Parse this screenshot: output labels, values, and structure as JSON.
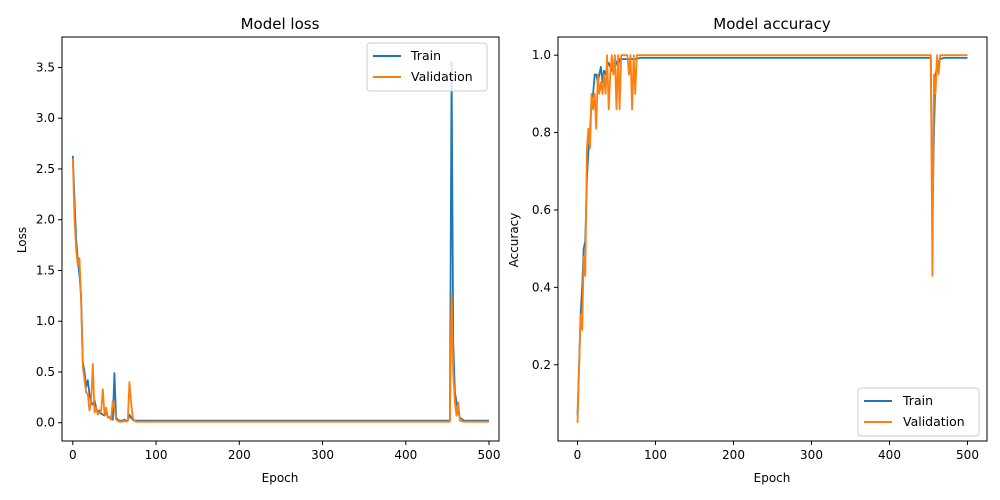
{
  "colors": {
    "train": "#1f77b4",
    "validation": "#ff7f0e"
  },
  "chart_data": [
    {
      "type": "line",
      "title": "Model loss",
      "xlabel": "Epoch",
      "ylabel": "Loss",
      "xlim": [
        -13,
        512
      ],
      "ylim": [
        -0.18,
        3.8
      ],
      "xticks": [
        0,
        100,
        200,
        300,
        400,
        500
      ],
      "yticks": [
        0.0,
        0.5,
        1.0,
        1.5,
        2.0,
        2.5,
        3.0,
        3.5
      ],
      "ytick_labels": [
        "0.0",
        "0.5",
        "1.0",
        "1.5",
        "2.0",
        "2.5",
        "3.0",
        "3.5"
      ],
      "legend_position": "top-right",
      "legend": [
        "Train",
        "Validation"
      ],
      "series": [
        {
          "name": "Train",
          "x": [
            0,
            2,
            4,
            6,
            8,
            10,
            12,
            14,
            16,
            18,
            20,
            22,
            24,
            26,
            28,
            30,
            32,
            34,
            36,
            38,
            40,
            42,
            44,
            46,
            48,
            50,
            52,
            54,
            56,
            58,
            60,
            62,
            64,
            66,
            68,
            70,
            72,
            74,
            76,
            80,
            90,
            100,
            150,
            200,
            250,
            300,
            350,
            400,
            450,
            453,
            455,
            457,
            459,
            461,
            463,
            465,
            470,
            480,
            500
          ],
          "y": [
            2.63,
            2.2,
            1.8,
            1.6,
            1.45,
            1.25,
            0.6,
            0.5,
            0.35,
            0.42,
            0.28,
            0.2,
            0.18,
            0.22,
            0.15,
            0.1,
            0.12,
            0.09,
            0.08,
            0.07,
            0.1,
            0.06,
            0.05,
            0.04,
            0.03,
            0.49,
            0.05,
            0.03,
            0.02,
            0.02,
            0.02,
            0.03,
            0.02,
            0.02,
            0.08,
            0.05,
            0.03,
            0.02,
            0.02,
            0.02,
            0.02,
            0.02,
            0.02,
            0.02,
            0.02,
            0.02,
            0.02,
            0.02,
            0.02,
            0.02,
            3.55,
            0.8,
            0.3,
            0.2,
            0.1,
            0.05,
            0.02,
            0.02,
            0.02
          ]
        },
        {
          "name": "Validation",
          "x": [
            0,
            2,
            4,
            6,
            8,
            10,
            12,
            14,
            16,
            18,
            20,
            22,
            24,
            26,
            28,
            30,
            32,
            34,
            36,
            38,
            40,
            42,
            44,
            46,
            48,
            50,
            52,
            54,
            56,
            58,
            60,
            62,
            64,
            66,
            68,
            70,
            72,
            74,
            76,
            80,
            90,
            100,
            150,
            200,
            250,
            300,
            350,
            400,
            450,
            453,
            455,
            457,
            459,
            461,
            463,
            465,
            470,
            480,
            500
          ],
          "y": [
            2.6,
            2.0,
            1.7,
            1.55,
            1.62,
            1.2,
            0.55,
            0.42,
            0.3,
            0.28,
            0.12,
            0.2,
            0.58,
            0.1,
            0.15,
            0.08,
            0.1,
            0.12,
            0.33,
            0.08,
            0.15,
            0.05,
            0.06,
            0.03,
            0.22,
            0.15,
            0.03,
            0.02,
            0.01,
            0.01,
            0.01,
            0.02,
            0.01,
            0.02,
            0.4,
            0.2,
            0.05,
            0.02,
            0.01,
            0.01,
            0.01,
            0.01,
            0.01,
            0.01,
            0.01,
            0.01,
            0.01,
            0.01,
            0.01,
            0.01,
            1.27,
            0.5,
            0.2,
            0.07,
            0.2,
            0.02,
            0.01,
            0.01,
            0.01
          ]
        }
      ]
    },
    {
      "type": "line",
      "title": "Model accuracy",
      "xlabel": "Epoch",
      "ylabel": "Accuracy",
      "xlim": [
        -25,
        525
      ],
      "ylim": [
        0.003,
        1.047
      ],
      "xticks": [
        0,
        100,
        200,
        300,
        400,
        500
      ],
      "yticks": [
        0.2,
        0.4,
        0.6,
        0.8,
        1.0
      ],
      "ytick_labels": [
        "0.2",
        "0.4",
        "0.6",
        "0.8",
        "1.0"
      ],
      "legend_position": "bottom-right",
      "legend": [
        "Train",
        "Validation"
      ],
      "series": [
        {
          "name": "Train",
          "x": [
            0,
            2,
            4,
            6,
            8,
            10,
            12,
            14,
            16,
            18,
            20,
            22,
            24,
            26,
            28,
            30,
            32,
            34,
            36,
            38,
            40,
            42,
            44,
            46,
            48,
            50,
            52,
            54,
            56,
            58,
            60,
            65,
            70,
            75,
            80,
            100,
            200,
            300,
            400,
            450,
            453,
            455,
            457,
            459,
            461,
            463,
            465,
            470,
            480,
            500
          ],
          "y": [
            0.07,
            0.2,
            0.33,
            0.4,
            0.5,
            0.52,
            0.68,
            0.75,
            0.8,
            0.88,
            0.9,
            0.95,
            0.95,
            0.93,
            0.95,
            0.97,
            0.93,
            0.96,
            0.95,
            0.97,
            0.98,
            0.97,
            0.96,
            0.97,
            0.99,
            0.98,
            0.97,
            0.99,
            0.99,
            0.99,
            0.99,
            0.99,
            0.99,
            0.99,
            0.993,
            0.993,
            0.993,
            0.993,
            0.993,
            0.993,
            0.993,
            0.58,
            0.8,
            0.95,
            0.97,
            0.98,
            0.99,
            0.993,
            0.993,
            0.993
          ]
        },
        {
          "name": "Validation",
          "x": [
            0,
            2,
            4,
            6,
            8,
            10,
            12,
            14,
            16,
            18,
            20,
            22,
            24,
            26,
            28,
            30,
            32,
            34,
            36,
            38,
            40,
            42,
            44,
            46,
            48,
            50,
            52,
            54,
            56,
            58,
            60,
            62,
            64,
            66,
            68,
            70,
            72,
            74,
            76,
            80,
            100,
            200,
            300,
            400,
            450,
            453,
            455,
            457,
            459,
            461,
            463,
            465,
            470,
            480,
            500
          ],
          "y": [
            0.05,
            0.19,
            0.33,
            0.29,
            0.48,
            0.43,
            0.76,
            0.81,
            0.76,
            0.9,
            0.86,
            0.9,
            0.81,
            0.95,
            0.9,
            0.93,
            0.9,
            0.95,
            0.9,
            1.0,
            0.86,
            0.95,
            1.0,
            0.95,
            1.0,
            0.86,
            1.0,
            0.86,
            1.0,
            1.0,
            1.0,
            1.0,
            1.0,
            0.95,
            1.0,
            0.86,
            1.0,
            0.9,
            1.0,
            1.0,
            1.0,
            1.0,
            1.0,
            1.0,
            1.0,
            1.0,
            0.43,
            0.95,
            0.9,
            1.0,
            0.95,
            1.0,
            1.0,
            1.0,
            1.0
          ]
        }
      ]
    }
  ]
}
